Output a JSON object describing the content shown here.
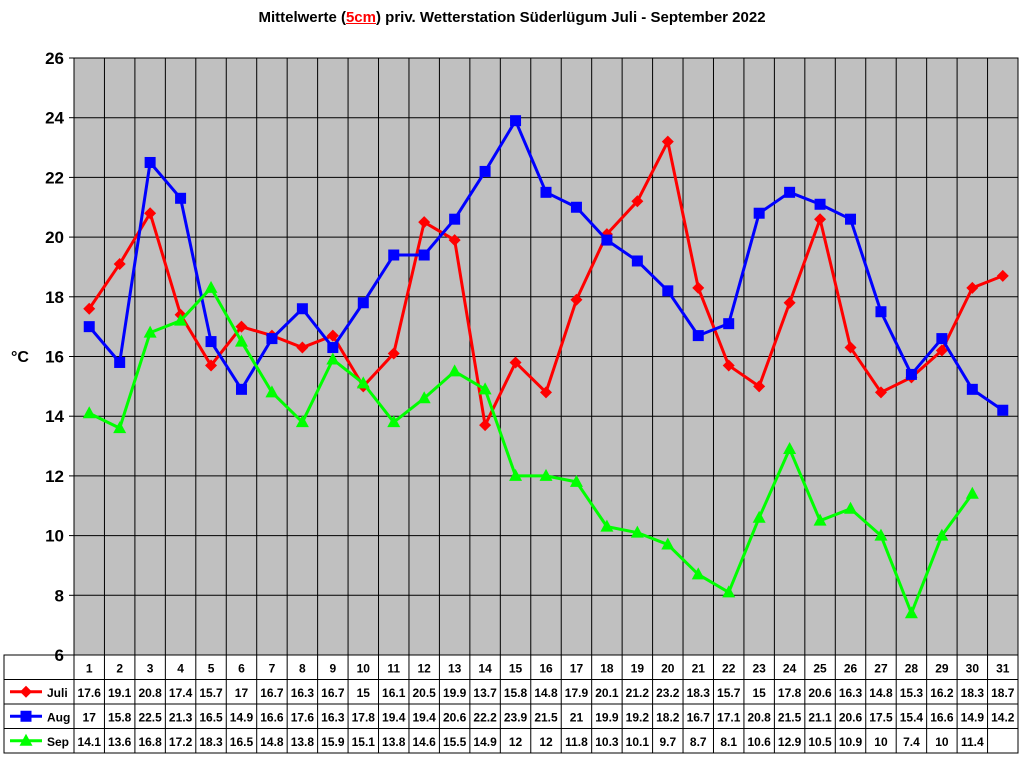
{
  "title": {
    "prefix": "Mittelwerte (",
    "highlight": "5cm",
    "suffix": ") priv. Wetterstation Süderlügum Juli - September 2022"
  },
  "chart_data": {
    "type": "line",
    "ylabel": "°C",
    "ylim": [
      6,
      26
    ],
    "yticks": [
      6,
      8,
      10,
      12,
      14,
      16,
      18,
      20,
      22,
      24,
      26
    ],
    "grid": true,
    "legend_placement": "left of data table",
    "categories": [
      "1",
      "2",
      "3",
      "4",
      "5",
      "6",
      "7",
      "8",
      "9",
      "10",
      "11",
      "12",
      "13",
      "14",
      "15",
      "16",
      "17",
      "18",
      "19",
      "20",
      "21",
      "22",
      "23",
      "24",
      "25",
      "26",
      "27",
      "28",
      "29",
      "30",
      "31"
    ],
    "series": [
      {
        "name": "Juli",
        "color": "#ff0000",
        "marker": "diamond",
        "values": [
          17.6,
          19.1,
          20.8,
          17.4,
          15.7,
          17,
          16.7,
          16.3,
          16.7,
          15,
          16.1,
          20.5,
          19.9,
          13.7,
          15.8,
          14.8,
          17.9,
          20.1,
          21.2,
          23.2,
          18.3,
          15.7,
          15,
          17.8,
          20.6,
          16.3,
          14.8,
          15.3,
          16.2,
          18.3,
          18.7
        ]
      },
      {
        "name": "Aug",
        "color": "#0000ff",
        "marker": "square",
        "values": [
          17,
          15.8,
          22.5,
          21.3,
          16.5,
          14.9,
          16.6,
          17.6,
          16.3,
          17.8,
          19.4,
          19.4,
          20.6,
          22.2,
          23.9,
          21.5,
          21,
          19.9,
          19.2,
          18.2,
          16.7,
          17.1,
          20.8,
          21.5,
          21.1,
          20.6,
          17.5,
          15.4,
          16.6,
          14.9,
          14.2
        ]
      },
      {
        "name": "Sep",
        "color": "#00ff00",
        "marker": "triangle",
        "values": [
          14.1,
          13.6,
          16.8,
          17.2,
          18.3,
          16.5,
          14.8,
          13.8,
          15.9,
          15.1,
          13.8,
          14.6,
          15.5,
          14.9,
          12,
          12,
          11.8,
          10.3,
          10.1,
          9.7,
          8.7,
          8.1,
          10.6,
          12.9,
          10.5,
          10.9,
          10,
          7.4,
          10,
          11.4,
          null
        ]
      }
    ]
  },
  "colors": {
    "plot_background": "#c0c0c0",
    "grid": "#000000"
  }
}
